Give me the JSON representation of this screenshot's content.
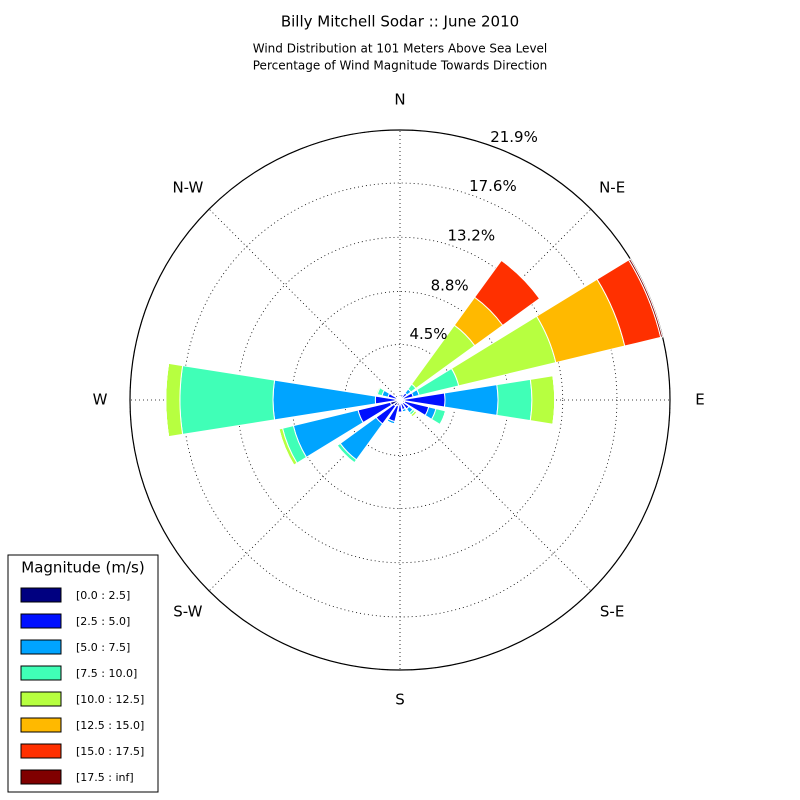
{
  "chart_data": {
    "type": "windrose",
    "title": "Billy Mitchell Sodar :: June 2010",
    "subtitle": [
      "Wind Distribution at 101 Meters Above Sea Level",
      "Percentage of Wind Magnitude Towards Direction"
    ],
    "legend_title": "Magnitude (m/s)",
    "legend_position": "lower left",
    "x": [
      0,
      22.5,
      45,
      67.5,
      90,
      112.5,
      135,
      157.5,
      180,
      202.5,
      225,
      247.5,
      270,
      292.5,
      315,
      337.5
    ],
    "xlim": [
      0,
      360
    ],
    "xticks": [
      {
        "value": 0,
        "label": "N"
      },
      {
        "value": 45,
        "label": "N-E"
      },
      {
        "value": 90,
        "label": "E"
      },
      {
        "value": 135,
        "label": "S-E"
      },
      {
        "value": 180,
        "label": "S"
      },
      {
        "value": 225,
        "label": "S-W"
      },
      {
        "value": 270,
        "label": "W"
      },
      {
        "value": 315,
        "label": "N-W"
      }
    ],
    "ylim": [
      0,
      21.9
    ],
    "yticks": [
      {
        "value": 4.5,
        "label": "4.5%"
      },
      {
        "value": 8.8,
        "label": "8.8%"
      },
      {
        "value": 13.2,
        "label": "13.2%"
      },
      {
        "value": 17.6,
        "label": "17.6%"
      },
      {
        "value": 21.9,
        "label": "21.9%"
      }
    ],
    "grid": true,
    "series": [
      {
        "name": "[0.0 : 2.5]",
        "color": "#000080",
        "values": [
          0.2,
          0.2,
          0.2,
          0.3,
          0.4,
          0.4,
          0.3,
          0.3,
          0.4,
          0.5,
          0.6,
          0.8,
          0.4,
          0.3,
          0.2,
          0.2
        ]
      },
      {
        "name": "[2.5 : 5.0]",
        "color": "#0010ff",
        "values": [
          0.1,
          0.3,
          0.5,
          0.8,
          3.25,
          2.0,
          0.6,
          0.5,
          0.6,
          1.3,
          1.8,
          2.7,
          1.6,
          0.7,
          0.1,
          0.1
        ]
      },
      {
        "name": "[5.0 : 7.5]",
        "color": "#00a4ff",
        "values": [
          0,
          0,
          0.4,
          0.5,
          4.3,
          0.6,
          0.4,
          0.2,
          0,
          0.2,
          3.6,
          5.4,
          8.3,
          0.5,
          0,
          0
        ]
      },
      {
        "name": "[7.5 : 10.0]",
        "color": "#40ffb7",
        "values": [
          0,
          0,
          0.5,
          3.3,
          2.75,
          0.8,
          0.2,
          0,
          0,
          0,
          0.3,
          0.9,
          7.55,
          0.4,
          0,
          0
        ]
      },
      {
        "name": "[10.0 : 12.5]",
        "color": "#b7ff40",
        "values": [
          0,
          0,
          5.9,
          8.1,
          1.85,
          0,
          0.2,
          0,
          0,
          0,
          0,
          0.3,
          1.15,
          0.1,
          0,
          0
        ]
      },
      {
        "name": "[12.5 : 15.0]",
        "color": "#ffb900",
        "values": [
          0,
          0,
          2.8,
          5.75,
          0,
          0,
          0,
          0,
          0,
          0,
          0,
          0,
          0,
          0,
          0,
          0
        ]
      },
      {
        "name": "[15.0 : 17.5]",
        "color": "#ff3000",
        "values": [
          0,
          0,
          3.7,
          3.0,
          0,
          0,
          0,
          0,
          0,
          0,
          0,
          0,
          0,
          0,
          0,
          0
        ]
      },
      {
        "name": "[17.5 : inf]",
        "color": "#800000",
        "values": [
          0,
          0,
          0,
          0.15,
          0,
          0,
          0,
          0,
          0,
          0,
          0,
          0,
          0,
          0,
          0,
          0
        ]
      }
    ]
  }
}
